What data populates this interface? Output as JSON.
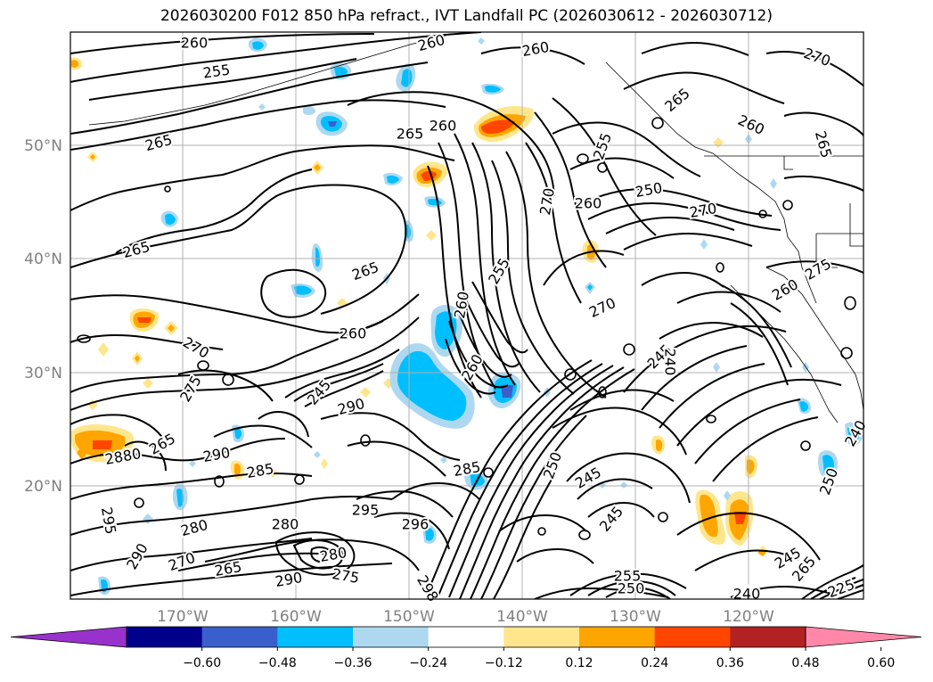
{
  "title": "2026030200 F012 850 hPa refract., IVT Landfall PC (2026030612 - 2026030712)",
  "lat_labels": [
    "50°N",
    "40°N",
    "30°N",
    "20°N"
  ],
  "lon_labels": [
    "170°W",
    "160°W",
    "150°W",
    "140°W",
    "130°W",
    "120°W"
  ],
  "contour_labels": [
    {
      "text": "260"
    },
    {
      "text": "255"
    },
    {
      "text": "260"
    },
    {
      "text": "260"
    },
    {
      "text": "270"
    },
    {
      "text": "265"
    },
    {
      "text": "260"
    },
    {
      "text": "265"
    },
    {
      "text": "265"
    },
    {
      "text": "260"
    },
    {
      "text": "260"
    },
    {
      "text": "255"
    },
    {
      "text": "250"
    },
    {
      "text": "265"
    },
    {
      "text": "270"
    },
    {
      "text": "255"
    },
    {
      "text": "270"
    },
    {
      "text": "260"
    },
    {
      "text": "265"
    },
    {
      "text": "270"
    },
    {
      "text": "265"
    },
    {
      "text": "260"
    },
    {
      "text": "275"
    },
    {
      "text": "260"
    },
    {
      "text": "270"
    },
    {
      "text": "275"
    },
    {
      "text": "245"
    },
    {
      "text": "240"
    },
    {
      "text": "260"
    },
    {
      "text": "290"
    },
    {
      "text": "245"
    },
    {
      "text": "2880"
    },
    {
      "text": "265"
    },
    {
      "text": "290"
    },
    {
      "text": "285"
    },
    {
      "text": "285"
    },
    {
      "text": "250"
    },
    {
      "text": "245"
    },
    {
      "text": "245"
    },
    {
      "text": "295"
    },
    {
      "text": "280"
    },
    {
      "text": "295"
    },
    {
      "text": "296"
    },
    {
      "text": "280"
    },
    {
      "text": "290"
    },
    {
      "text": "270"
    },
    {
      "text": "265"
    },
    {
      "text": "290"
    },
    {
      "text": "275"
    },
    {
      "text": "280"
    },
    {
      "text": "265"
    },
    {
      "text": "298"
    },
    {
      "text": "255"
    },
    {
      "text": "250"
    },
    {
      "text": "240"
    },
    {
      "text": "245"
    },
    {
      "text": "250"
    },
    {
      "text": "240"
    },
    {
      "text": "225"
    }
  ],
  "colorbar": {
    "colors": [
      "#9932cc",
      "#00008b",
      "#3a5fcd",
      "#00bfff",
      "#add8f0",
      "#ffffff",
      "#ffe68c",
      "#ffa500",
      "#ff4500",
      "#b22222",
      "#ff88aa"
    ],
    "tick_labels": [
      "−0.60",
      "−0.48",
      "−0.36",
      "−0.24",
      "−0.12",
      "0.12",
      "0.24",
      "0.36",
      "0.48",
      "0.60"
    ]
  }
}
